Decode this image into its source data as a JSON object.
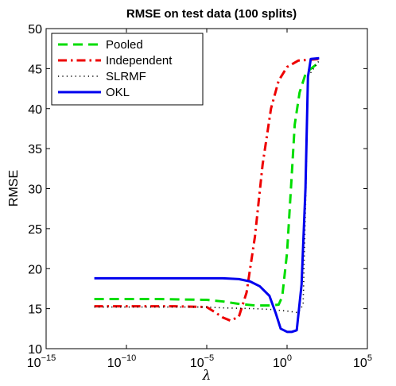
{
  "chart_data": {
    "type": "line",
    "title": "RMSE on test data (100 splits)",
    "xlabel": "λ",
    "ylabel": "RMSE",
    "xscale": "log",
    "xlim": [
      1e-15,
      100000
    ],
    "ylim": [
      10,
      50
    ],
    "x_tick_bases": [
      "10",
      "10",
      "10",
      "10",
      "10"
    ],
    "x_tick_exponents": [
      "−15",
      "−10",
      "−5",
      "0",
      "5"
    ],
    "x_ticks": [
      1e-15,
      1e-10,
      1e-05,
      1,
      100000
    ],
    "y_ticks": [
      10,
      15,
      20,
      25,
      30,
      35,
      40,
      45,
      50
    ],
    "grid": false,
    "legend_position": "top-left",
    "series": [
      {
        "name": "Pooled",
        "color": "#00dd00",
        "style": "dashed",
        "points": [
          [
            1e-12,
            16.2
          ],
          [
            1e-08,
            16.2
          ],
          [
            1e-05,
            16.1
          ],
          [
            0.0001,
            15.9
          ],
          [
            0.001,
            15.6
          ],
          [
            0.01,
            15.4
          ],
          [
            0.1,
            15.4
          ],
          [
            0.3,
            15.5
          ],
          [
            0.5,
            16.5
          ],
          [
            1,
            22
          ],
          [
            2,
            32
          ],
          [
            3,
            38
          ],
          [
            6,
            42
          ],
          [
            15,
            44.5
          ],
          [
            100,
            45.8
          ]
        ]
      },
      {
        "name": "Independent",
        "color": "#ee0000",
        "style": "dash-dot",
        "points": [
          [
            1e-12,
            15.3
          ],
          [
            1e-07,
            15.3
          ],
          [
            1e-05,
            15.2
          ],
          [
            3e-05,
            14.6
          ],
          [
            0.0001,
            13.9
          ],
          [
            0.0003,
            13.5
          ],
          [
            0.001,
            14
          ],
          [
            0.003,
            17
          ],
          [
            0.01,
            24
          ],
          [
            0.03,
            33
          ],
          [
            0.1,
            40
          ],
          [
            0.3,
            43.5
          ],
          [
            1,
            45.2
          ],
          [
            5,
            46
          ],
          [
            100,
            46.2
          ]
        ]
      },
      {
        "name": "SLRMF",
        "color": "#000000",
        "style": "dotted",
        "points": [
          [
            1e-12,
            15.2
          ],
          [
            1e-05,
            15.2
          ],
          [
            0.0001,
            15.1
          ],
          [
            0.01,
            15
          ],
          [
            0.1,
            14.9
          ],
          [
            1,
            14.7
          ],
          [
            5,
            14.5
          ],
          [
            10,
            15.5
          ],
          [
            15,
            30
          ],
          [
            20,
            44
          ],
          [
            100,
            46
          ]
        ]
      },
      {
        "name": "OKL",
        "color": "#0000ee",
        "style": "solid",
        "points": [
          [
            1e-12,
            18.8
          ],
          [
            1e-05,
            18.8
          ],
          [
            0.0001,
            18.8
          ],
          [
            0.001,
            18.7
          ],
          [
            0.005,
            18.4
          ],
          [
            0.02,
            17.8
          ],
          [
            0.08,
            16.6
          ],
          [
            0.2,
            14.4
          ],
          [
            0.4,
            12.5
          ],
          [
            1,
            12.1
          ],
          [
            2,
            12.1
          ],
          [
            4,
            12.3
          ],
          [
            8,
            18
          ],
          [
            14,
            30
          ],
          [
            20,
            44
          ],
          [
            30,
            46.2
          ],
          [
            100,
            46.3
          ]
        ]
      }
    ]
  }
}
